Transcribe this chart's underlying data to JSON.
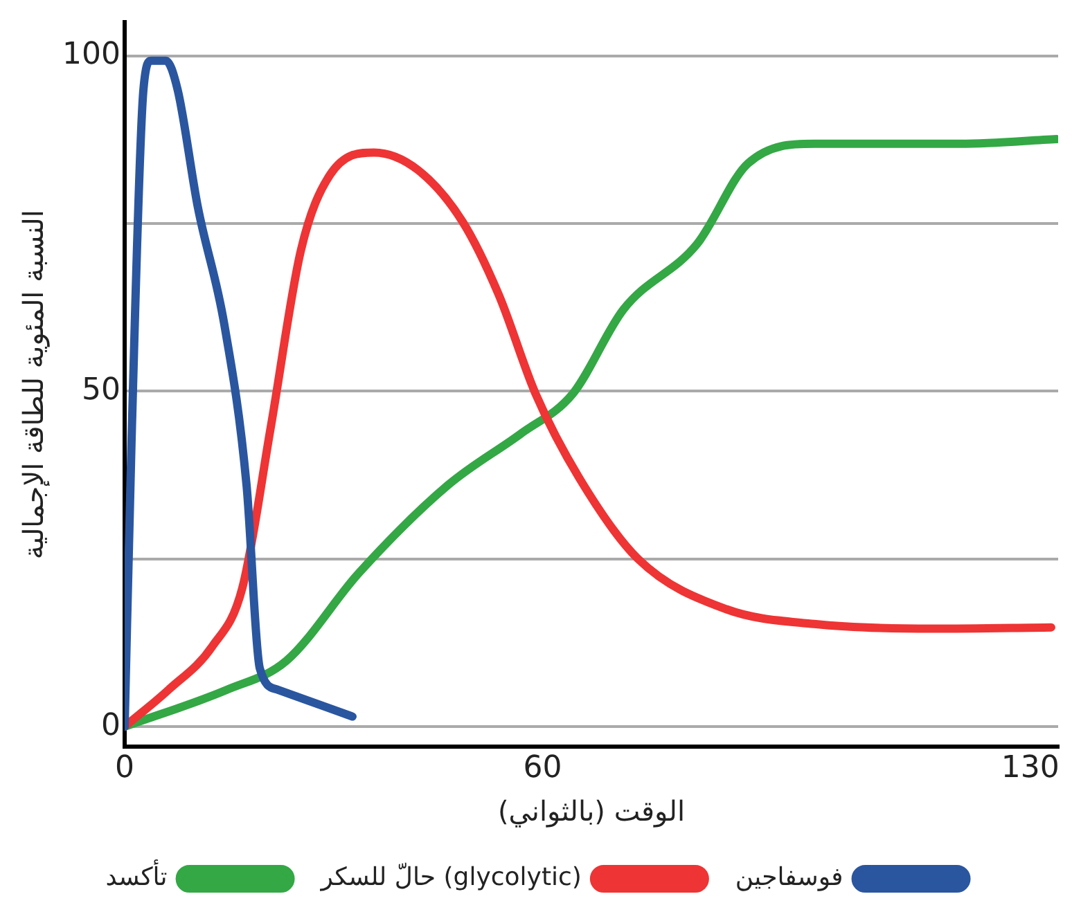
{
  "chart_data": {
    "type": "line",
    "xlabel": "الوقت (بالثواني)",
    "ylabel": "النسبة المئوية للطاقة الإجمالية",
    "xlim": [
      0,
      134
    ],
    "xticks": [
      0,
      60,
      130
    ],
    "ylim": [
      -3,
      105
    ],
    "yticks": [
      0,
      {
        "value": 25,
        "label": null
      },
      50,
      {
        "value": 75,
        "label": null
      },
      100
    ],
    "grid": "y",
    "legend": "bottom",
    "marker": "none",
    "line_style": "solid",
    "series": [
      {
        "name": "فوسفاجين",
        "color": "#2a56a0",
        "x": [
          0,
          1,
          2.7,
          3.8,
          5.9,
          7.6,
          10.5,
          14.3,
          17.5,
          19.4,
          22,
          32.7
        ],
        "values": [
          0,
          43,
          95,
          99.3,
          99.3,
          95,
          77.5,
          60,
          36,
          8.7,
          5.5,
          1.5
        ]
      },
      {
        "name": "حالّ للسكر (glycolytic)",
        "color": "#ee3434",
        "x": [
          0,
          6.3,
          12.6,
          16.9,
          21,
          25.3,
          29.5,
          35.8,
          42.1,
          48.5,
          53.7,
          59,
          65.3,
          73.7,
          86.4,
          99,
          116,
          133
        ],
        "values": [
          0,
          5.5,
          12,
          20.7,
          44.8,
          71,
          82.3,
          85.6,
          83,
          75.3,
          64.4,
          49.6,
          37,
          25,
          17.5,
          15.3,
          14.6,
          14.8
        ]
      },
      {
        "name": "تأكسد",
        "color": "#33a845",
        "x": [
          0,
          14.7,
          23.2,
          33.7,
          46.4,
          56.9,
          64.3,
          71.6,
          82.2,
          89.5,
          99,
          109.6,
          120,
          133.8
        ],
        "values": [
          0,
          5.5,
          9.8,
          23,
          36,
          43.7,
          49.6,
          62.2,
          72,
          84,
          86.9,
          86.9,
          86.9,
          87.6
        ]
      }
    ]
  }
}
